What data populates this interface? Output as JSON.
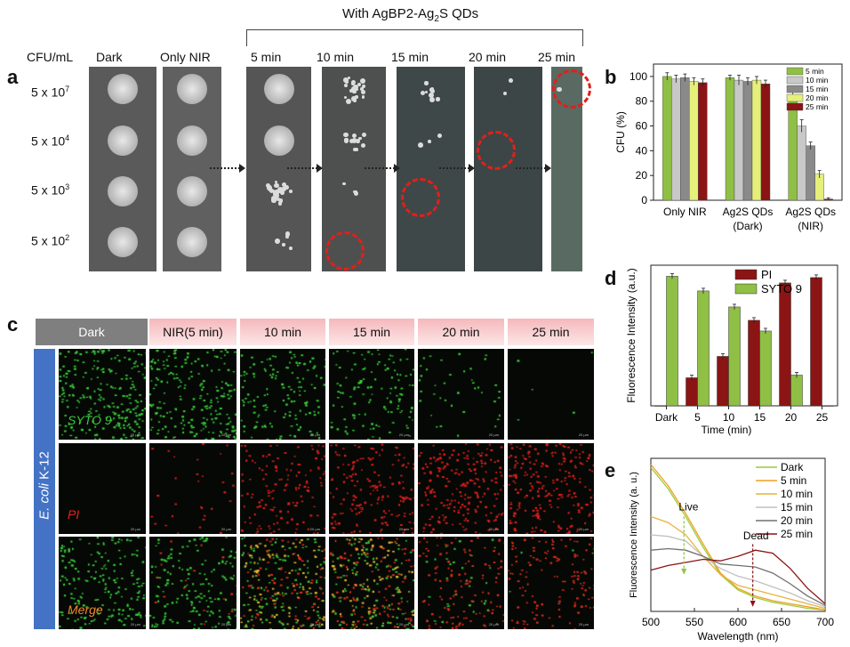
{
  "panel_a": {
    "letter": "a",
    "bracket_title": "With AgBP2-Ag",
    "bracket_sub": "2",
    "bracket_suffix": "S QDs",
    "row_header": "CFU/mL",
    "columns": [
      "Dark",
      "Only NIR",
      "5 min",
      "10 min",
      "15 min",
      "20 min",
      "25 min"
    ],
    "rows": [
      {
        "base": "5 x 10",
        "exp": "7"
      },
      {
        "base": "5 x 10",
        "exp": "4"
      },
      {
        "base": "5 x 10",
        "exp": "3"
      },
      {
        "base": "5 x 10",
        "exp": "2"
      }
    ]
  },
  "panel_b": {
    "letter": "b",
    "chart_data": {
      "type": "bar",
      "ylabel": "CFU (%)",
      "ylim": [
        0,
        110
      ],
      "yticks": [
        0,
        20,
        40,
        60,
        80,
        100
      ],
      "groups": [
        {
          "label": "Only NIR",
          "label2": ""
        },
        {
          "label": "Ag2S QDs",
          "label2": "(Dark)"
        },
        {
          "label": "Ag2S QDs",
          "label2": "(NIR)"
        }
      ],
      "series": [
        {
          "name": "5  min",
          "color": "#8fbf45",
          "values": [
            100,
            99,
            85
          ]
        },
        {
          "name": "10 min",
          "color": "#c8c8c8",
          "values": [
            98,
            97,
            60
          ]
        },
        {
          "name": "15 min",
          "color": "#8a8a8a",
          "values": [
            99,
            96,
            44
          ]
        },
        {
          "name": "20 min",
          "color": "#e5ef7a",
          "values": [
            96,
            97,
            21
          ]
        },
        {
          "name": "25 min",
          "color": "#8b1414",
          "values": [
            95,
            94,
            1
          ]
        }
      ],
      "errors": [
        [
          3,
          2,
          3
        ],
        [
          3,
          4,
          5
        ],
        [
          3,
          3,
          3
        ],
        [
          3,
          3,
          3
        ],
        [
          3,
          3,
          1
        ]
      ],
      "legend": "top-right"
    }
  },
  "panel_c": {
    "letter": "c",
    "headers": [
      "Dark",
      "NIR(5 min)",
      "10 min",
      "15 min",
      "20 min",
      "25 min"
    ],
    "side_label_italic": "E. coli",
    "side_label_rest": " K-12",
    "row_labels": [
      "SYTO 9",
      "PI",
      "Merge"
    ],
    "scale_bar": "20 μm"
  },
  "panel_d": {
    "letter": "d",
    "chart_data": {
      "type": "bar",
      "ylabel": "Fluorescence Intensity (a.u.)",
      "xlabel": "Time (min)",
      "categories": [
        "Dark",
        "5",
        "10",
        "15",
        "20",
        "25"
      ],
      "ylim": [
        0,
        1
      ],
      "series": [
        {
          "name": "PI",
          "color": "#8b1414",
          "values": [
            0.0,
            0.21,
            0.37,
            0.64,
            0.92,
            0.96
          ]
        },
        {
          "name": "SYTO 9",
          "color": "#8fbf45",
          "values": [
            0.97,
            0.86,
            0.74,
            0.56,
            0.23,
            0.0
          ]
        }
      ],
      "legend": "top-right"
    }
  },
  "panel_e": {
    "letter": "e",
    "chart_data": {
      "type": "line",
      "xlabel": "Wavelength (nm)",
      "ylabel": "Fluorescence Intensity (a. u.)",
      "xlim": [
        500,
        700
      ],
      "xticks": [
        500,
        550,
        600,
        650,
        700
      ],
      "annotations": [
        "Live",
        "Dead"
      ],
      "series": [
        {
          "name": "Dark",
          "color": "#9ccc3a",
          "x": [
            500,
            520,
            540,
            560,
            580,
            600,
            620,
            640,
            660,
            680,
            700
          ],
          "y": [
            0.94,
            0.8,
            0.62,
            0.42,
            0.24,
            0.14,
            0.09,
            0.06,
            0.04,
            0.02,
            0.01
          ]
        },
        {
          "name": "5 min",
          "color": "#f0a020",
          "x": [
            500,
            520,
            540,
            560,
            580,
            600,
            620,
            640,
            660,
            680,
            700
          ],
          "y": [
            0.96,
            0.82,
            0.64,
            0.44,
            0.25,
            0.15,
            0.1,
            0.07,
            0.05,
            0.03,
            0.01
          ]
        },
        {
          "name": "10 min",
          "color": "#e6b340",
          "x": [
            500,
            520,
            540,
            560,
            580,
            600,
            620,
            640,
            660,
            680,
            700
          ],
          "y": [
            0.62,
            0.58,
            0.5,
            0.36,
            0.24,
            0.17,
            0.14,
            0.11,
            0.08,
            0.05,
            0.02
          ]
        },
        {
          "name": "15 min",
          "color": "#c0c0c0",
          "x": [
            500,
            520,
            540,
            560,
            580,
            600,
            620,
            640,
            660,
            680,
            700
          ],
          "y": [
            0.5,
            0.49,
            0.46,
            0.36,
            0.28,
            0.23,
            0.2,
            0.16,
            0.12,
            0.07,
            0.03
          ]
        },
        {
          "name": "20 min",
          "color": "#707070",
          "x": [
            500,
            520,
            540,
            560,
            580,
            600,
            620,
            640,
            660,
            680,
            700
          ],
          "y": [
            0.4,
            0.41,
            0.4,
            0.36,
            0.31,
            0.3,
            0.29,
            0.25,
            0.18,
            0.1,
            0.04
          ]
        },
        {
          "name": "25 min",
          "color": "#8b1414",
          "x": [
            500,
            520,
            540,
            560,
            580,
            600,
            620,
            640,
            660,
            680,
            700
          ],
          "y": [
            0.27,
            0.3,
            0.32,
            0.34,
            0.33,
            0.36,
            0.4,
            0.38,
            0.28,
            0.15,
            0.05
          ]
        }
      ],
      "legend": "top-right"
    }
  }
}
